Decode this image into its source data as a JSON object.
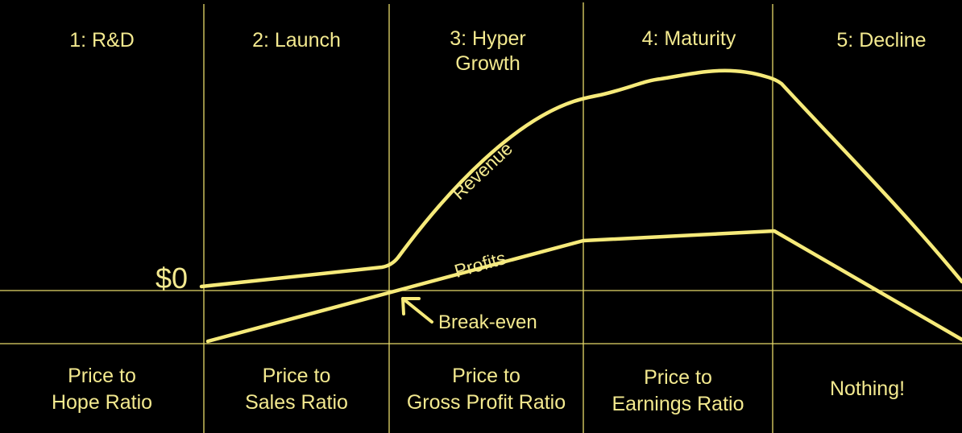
{
  "stages": [
    {
      "title": "1: R&D",
      "ratio": "Price to\nHope Ratio"
    },
    {
      "title": "2: Launch",
      "ratio": "Price to\nSales Ratio"
    },
    {
      "title": "3: Hyper\nGrowth",
      "ratio": "Price to\nGross Profit Ratio"
    },
    {
      "title": "4: Maturity",
      "ratio": "Price to\nEarnings Ratio"
    },
    {
      "title": "5: Decline",
      "ratio": "Nothing!"
    }
  ],
  "baseline_label": "$0",
  "curves": {
    "revenue": "Revenue",
    "profits": "Profits"
  },
  "annotation": "Break-even",
  "colors": {
    "background": "#000000",
    "grid": "#e6d96a",
    "curve": "#f6ea7a",
    "text": "#f3e98f"
  }
}
